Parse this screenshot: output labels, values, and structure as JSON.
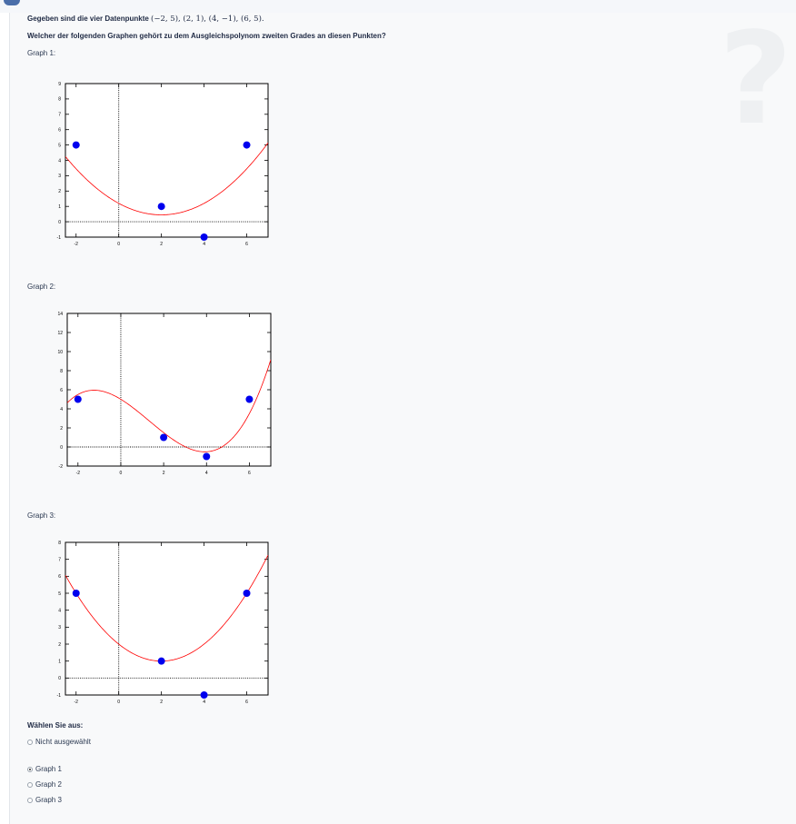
{
  "question": {
    "intro_prefix": "Gegeben sind die vier Datenpunkte",
    "points_text": "(−2, 5), (2, 1), (4, −1), (6, 5).",
    "prompt": "Welcher der folgenden Graphen gehört zu dem Ausgleichspolynom zweiten Grades an diesen Punkten?"
  },
  "graphs": [
    {
      "label": "Graph 1:"
    },
    {
      "label": "Graph 2:"
    },
    {
      "label": "Graph 3:"
    }
  ],
  "chart_data": [
    {
      "type": "line",
      "xlim": [
        -2.5,
        7
      ],
      "ylim": [
        -1,
        9
      ],
      "xticks": [
        -2,
        0,
        2,
        4,
        6
      ],
      "yticks": [
        -1,
        0,
        1,
        2,
        3,
        4,
        5,
        6,
        7,
        8,
        9
      ],
      "points": [
        {
          "x": -2,
          "y": 5
        },
        {
          "x": 2,
          "y": 1
        },
        {
          "x": 4,
          "y": -1
        },
        {
          "x": 6,
          "y": 5
        }
      ],
      "curve_coeffs": [
        1.2,
        -0.75,
        0.1875
      ],
      "colors": {
        "curve": "#ff0000",
        "points": "#0000ee"
      }
    },
    {
      "type": "line",
      "xlim": [
        -2.5,
        7
      ],
      "ylim": [
        -2,
        14
      ],
      "xticks": [
        -2,
        0,
        2,
        4,
        6
      ],
      "yticks": [
        -2,
        0,
        2,
        4,
        6,
        8,
        10,
        12,
        14
      ],
      "points": [
        {
          "x": -2,
          "y": 5
        },
        {
          "x": 2,
          "y": 1
        },
        {
          "x": 4,
          "y": -1
        },
        {
          "x": 6,
          "y": 5
        }
      ],
      "curve_coeffs": [
        5,
        -1.375,
        -0.375,
        0.09375
      ],
      "colors": {
        "curve": "#ff0000",
        "points": "#0000ee"
      }
    },
    {
      "type": "line",
      "xlim": [
        -2.5,
        7
      ],
      "ylim": [
        -1,
        8
      ],
      "xticks": [
        -2,
        0,
        2,
        4,
        6
      ],
      "yticks": [
        -1,
        0,
        1,
        2,
        3,
        4,
        5,
        6,
        7,
        8
      ],
      "points": [
        {
          "x": -2,
          "y": 5
        },
        {
          "x": 2,
          "y": 1
        },
        {
          "x": 4,
          "y": -1
        },
        {
          "x": 6,
          "y": 5
        }
      ],
      "curve_coeffs": [
        2,
        -1,
        0.25
      ],
      "colors": {
        "curve": "#ff0000",
        "points": "#0000ee"
      }
    }
  ],
  "answer": {
    "heading": "Wählen Sie aus:",
    "none_label": "Nicht ausgewählt",
    "options": [
      {
        "label": "Graph 1",
        "selected": true
      },
      {
        "label": "Graph 2",
        "selected": false
      },
      {
        "label": "Graph 3",
        "selected": false
      }
    ]
  }
}
